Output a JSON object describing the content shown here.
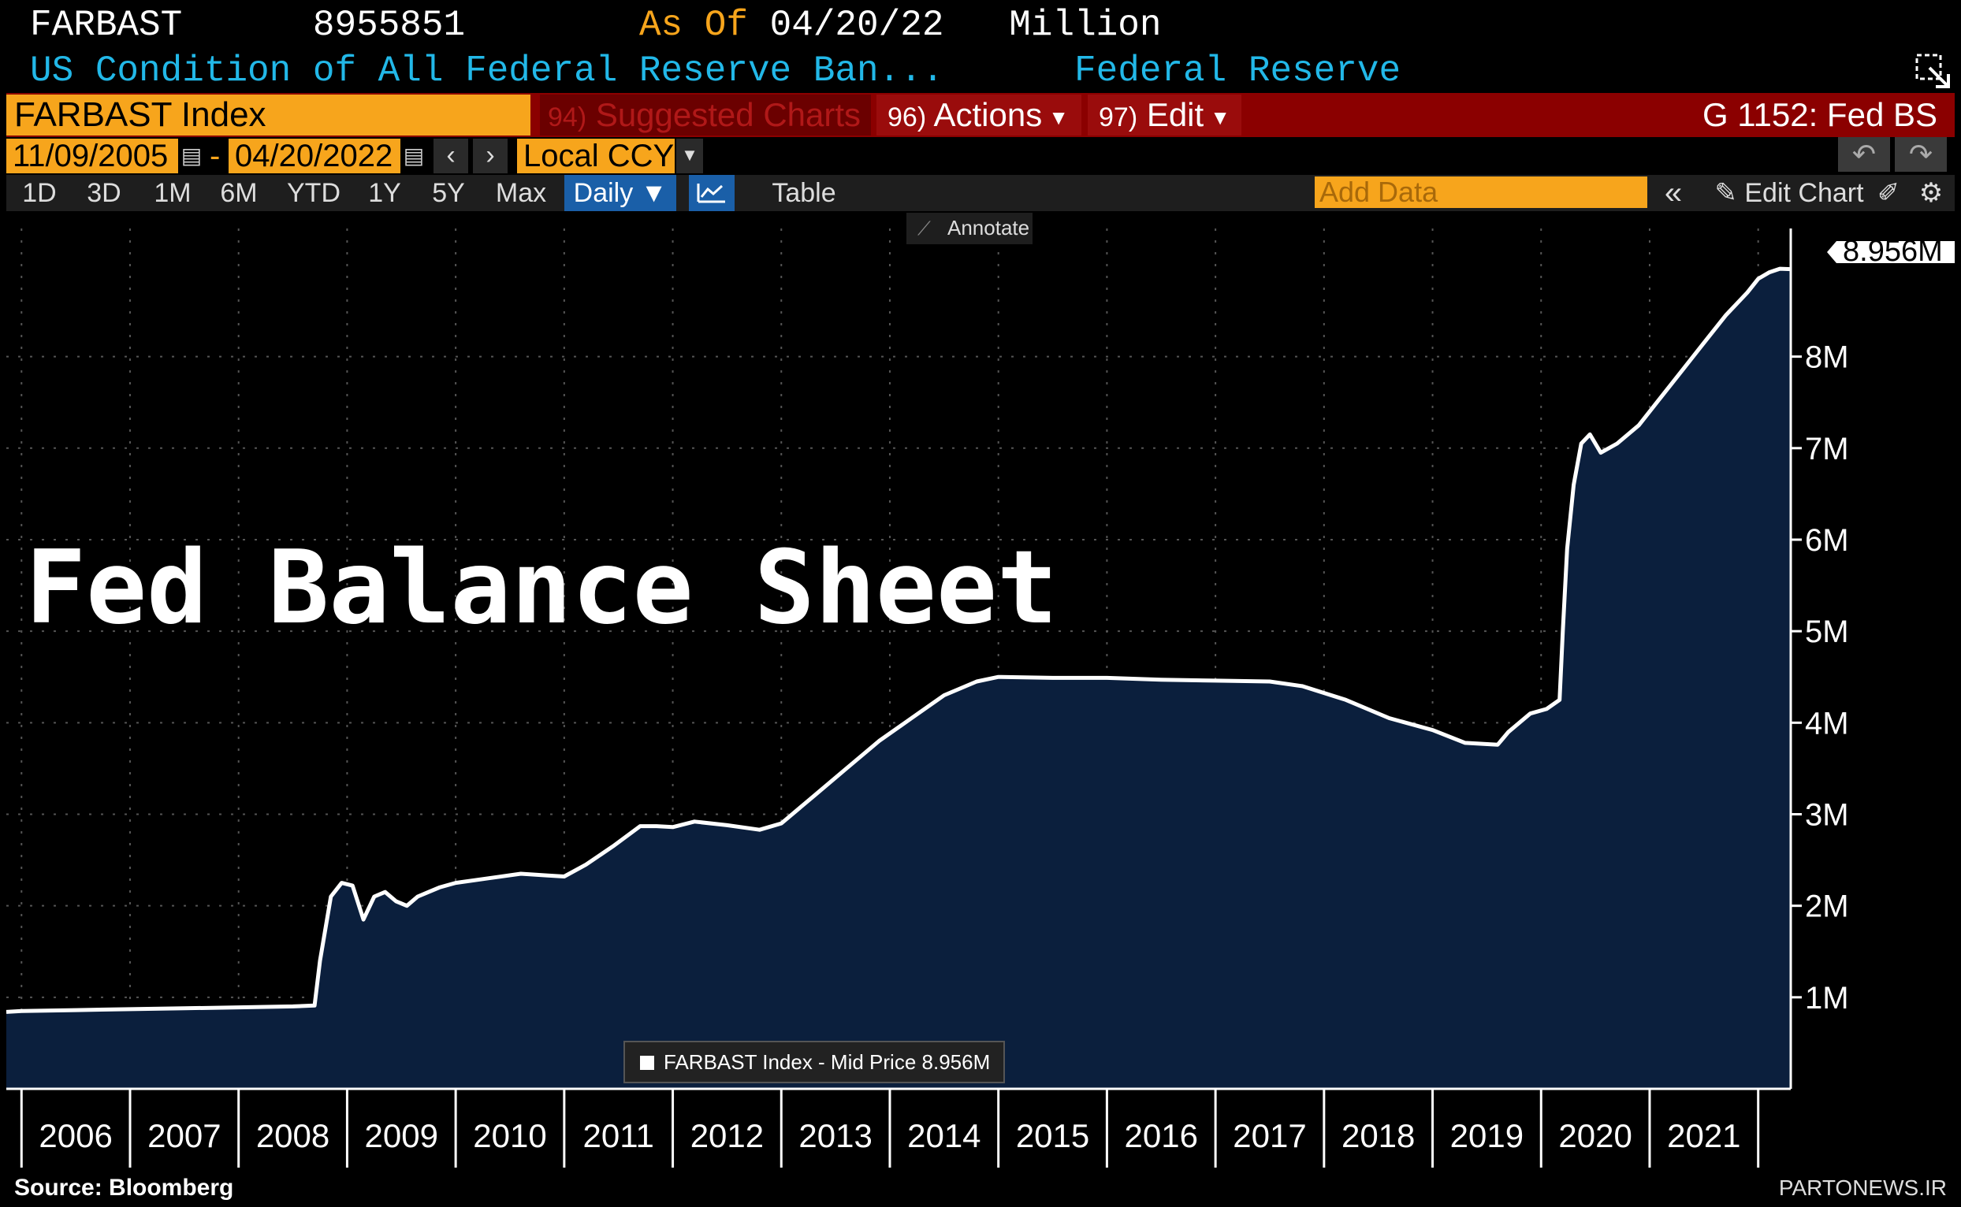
{
  "header": {
    "ticker": "FARBAST",
    "last_value": "8955851",
    "as_of_label": "As Of",
    "as_of_date": "04/20/22",
    "units": "Million",
    "description": "US Condition of All Federal Reserve Ban...",
    "source_name": "Federal Reserve",
    "popout_icon": "popout-icon"
  },
  "menubar": {
    "security": "FARBAST Index",
    "suggested_num": "94)",
    "suggested_label": "Suggested Charts",
    "actions_num": "96)",
    "actions_label": "Actions",
    "edit_num": "97)",
    "edit_label": "Edit",
    "chart_code": "G 1152: Fed BS"
  },
  "daterange": {
    "start": "11/09/2005",
    "separator": "-",
    "end": "04/20/2022",
    "currency": "Local CCY"
  },
  "toolbar": {
    "periods": [
      "1D",
      "3D",
      "1M",
      "6M",
      "YTD",
      "1Y",
      "5Y",
      "Max"
    ],
    "frequency": "Daily",
    "table_label": "Table",
    "add_data_placeholder": "Add Data",
    "edit_chart_label": "Edit Chart",
    "annotate_label": "Annotate"
  },
  "chart_data": {
    "type": "area",
    "title": "Fed Balance Sheet",
    "y_unit_suffix": "M",
    "ylim": [
      0,
      9.4
    ],
    "yticks": [
      1,
      2,
      3,
      4,
      5,
      6,
      7,
      8
    ],
    "ytick_labels": [
      "1M",
      "2M",
      "3M",
      "4M",
      "5M",
      "6M",
      "7M",
      "8M"
    ],
    "xlim": [
      2005.86,
      2022.3
    ],
    "xticks": [
      "2006",
      "2007",
      "2008",
      "2009",
      "2010",
      "2011",
      "2012",
      "2013",
      "2014",
      "2015",
      "2016",
      "2017",
      "2018",
      "2019",
      "2020",
      "2021"
    ],
    "last_value_label": "8.956M",
    "legend": "FARBAST Index - Mid Price 8.956M",
    "legend_position": "bottom-center",
    "grid": true,
    "line_color": "#ffffff",
    "fill_color": "#0b1f3d",
    "series": [
      {
        "name": "FARBAST Index - Mid Price",
        "x": [
          2005.86,
          2006.0,
          2006.5,
          2007.0,
          2007.5,
          2008.0,
          2008.5,
          2008.7,
          2008.75,
          2008.85,
          2008.95,
          2009.05,
          2009.15,
          2009.25,
          2009.35,
          2009.45,
          2009.55,
          2009.65,
          2009.75,
          2009.85,
          2010.0,
          2010.3,
          2010.6,
          2010.85,
          2011.0,
          2011.2,
          2011.45,
          2011.7,
          2011.85,
          2012.0,
          2012.2,
          2012.5,
          2012.8,
          2013.0,
          2013.3,
          2013.6,
          2013.9,
          2014.2,
          2014.5,
          2014.8,
          2015.0,
          2015.5,
          2016.0,
          2016.5,
          2017.0,
          2017.5,
          2017.8,
          2018.2,
          2018.6,
          2019.0,
          2019.3,
          2019.6,
          2019.7,
          2019.9,
          2020.05,
          2020.17,
          2020.2,
          2020.24,
          2020.3,
          2020.37,
          2020.45,
          2020.55,
          2020.7,
          2020.9,
          2021.1,
          2021.3,
          2021.5,
          2021.7,
          2021.9,
          2022.0,
          2022.1,
          2022.2,
          2022.3
        ],
        "values": [
          0.84,
          0.85,
          0.86,
          0.87,
          0.88,
          0.89,
          0.9,
          0.91,
          1.4,
          2.1,
          2.25,
          2.22,
          1.85,
          2.1,
          2.15,
          2.05,
          2.0,
          2.1,
          2.15,
          2.2,
          2.25,
          2.3,
          2.35,
          2.33,
          2.32,
          2.45,
          2.65,
          2.87,
          2.87,
          2.86,
          2.92,
          2.88,
          2.83,
          2.9,
          3.2,
          3.5,
          3.8,
          4.05,
          4.3,
          4.45,
          4.5,
          4.49,
          4.49,
          4.47,
          4.46,
          4.45,
          4.4,
          4.25,
          4.05,
          3.92,
          3.78,
          3.76,
          3.9,
          4.1,
          4.15,
          4.25,
          5.0,
          5.9,
          6.6,
          7.05,
          7.15,
          6.95,
          7.05,
          7.25,
          7.55,
          7.85,
          8.15,
          8.45,
          8.7,
          8.85,
          8.92,
          8.96,
          8.956
        ]
      }
    ],
    "source_note": "Source: Bloomberg",
    "watermark": "PARTONEWS.IR"
  }
}
